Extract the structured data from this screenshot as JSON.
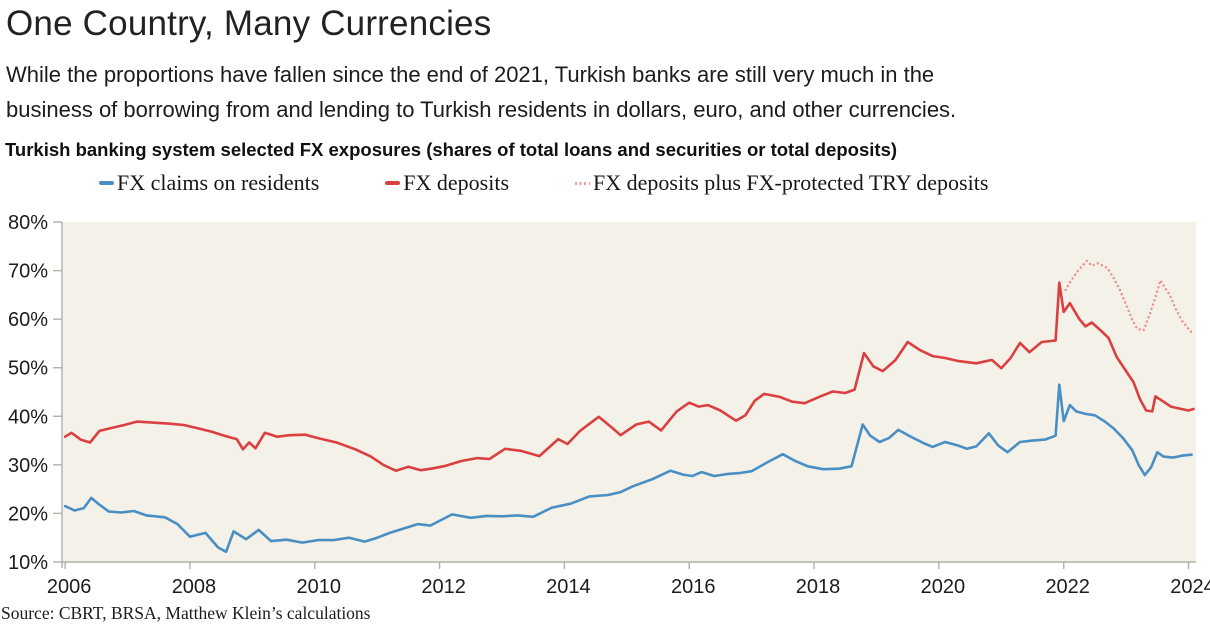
{
  "header": {
    "title": "One Country, Many Currencies",
    "subtitle_line1": "While the proportions have fallen since the end of 2021, Turkish banks are still very much in the",
    "subtitle_line2": "business of borrowing from and lending to Turkish residents in dollars, euro, and other currencies.",
    "chart_heading": "Turkish banking system selected FX exposures (shares of total loans and securities or total deposits)"
  },
  "legend": {
    "items": [
      {
        "label": "FX claims on residents",
        "color": "#4a8fc4",
        "style": "solid"
      },
      {
        "label": "FX deposits",
        "color": "#da4040",
        "style": "solid"
      },
      {
        "label": "FX deposits plus FX-protected TRY deposits",
        "color": "#ef9e99",
        "style": "dotted"
      }
    ]
  },
  "chart_data": {
    "type": "line",
    "title": "Turkish banking system selected FX exposures (shares of total loans and securities or total deposits)",
    "xlabel": "",
    "ylabel": "",
    "xlim": [
      2005.95,
      2024.12
    ],
    "ylim": [
      10,
      80
    ],
    "background": "#f4f1e9",
    "axis_color": "#b3b1ac",
    "grid": false,
    "legend_position": "top",
    "x_ticks": [
      {
        "v": 2006,
        "label": "2006"
      },
      {
        "v": 2008,
        "label": "2008"
      },
      {
        "v": 2010,
        "label": "2010"
      },
      {
        "v": 2012,
        "label": "2012"
      },
      {
        "v": 2014,
        "label": "2014"
      },
      {
        "v": 2016,
        "label": "2016"
      },
      {
        "v": 2018,
        "label": "2018"
      },
      {
        "v": 2020,
        "label": "2020"
      },
      {
        "v": 2022,
        "label": "2022"
      },
      {
        "v": 2024,
        "label": "2024"
      }
    ],
    "y_ticks": [
      {
        "v": 10,
        "label": "10%"
      },
      {
        "v": 20,
        "label": "20%"
      },
      {
        "v": 30,
        "label": "30%"
      },
      {
        "v": 40,
        "label": "40%"
      },
      {
        "v": 50,
        "label": "50%"
      },
      {
        "v": 60,
        "label": "60%"
      },
      {
        "v": 70,
        "label": "70%"
      },
      {
        "v": 80,
        "label": "80%"
      }
    ],
    "series": [
      {
        "name": "FX claims on residents",
        "color": "#4a8fc4",
        "style": "solid",
        "points": [
          [
            2006.0,
            21.5
          ],
          [
            2006.15,
            20.6
          ],
          [
            2006.3,
            21.1
          ],
          [
            2006.42,
            23.2
          ],
          [
            2006.55,
            21.8
          ],
          [
            2006.7,
            20.4
          ],
          [
            2006.9,
            20.2
          ],
          [
            2007.1,
            20.5
          ],
          [
            2007.3,
            19.6
          ],
          [
            2007.6,
            19.2
          ],
          [
            2007.8,
            17.8
          ],
          [
            2008.0,
            15.2
          ],
          [
            2008.25,
            16.0
          ],
          [
            2008.45,
            13.0
          ],
          [
            2008.58,
            12.1
          ],
          [
            2008.7,
            16.3
          ],
          [
            2008.9,
            14.7
          ],
          [
            2009.1,
            16.6
          ],
          [
            2009.3,
            14.3
          ],
          [
            2009.55,
            14.6
          ],
          [
            2009.8,
            14.0
          ],
          [
            2010.05,
            14.5
          ],
          [
            2010.3,
            14.5
          ],
          [
            2010.55,
            15.0
          ],
          [
            2010.8,
            14.2
          ],
          [
            2011.0,
            15.0
          ],
          [
            2011.2,
            16.0
          ],
          [
            2011.45,
            17.0
          ],
          [
            2011.65,
            17.8
          ],
          [
            2011.85,
            17.5
          ],
          [
            2012.2,
            19.8
          ],
          [
            2012.5,
            19.1
          ],
          [
            2012.75,
            19.5
          ],
          [
            2013.0,
            19.4
          ],
          [
            2013.25,
            19.6
          ],
          [
            2013.5,
            19.3
          ],
          [
            2013.8,
            21.2
          ],
          [
            2014.1,
            22.0
          ],
          [
            2014.4,
            23.5
          ],
          [
            2014.7,
            23.8
          ],
          [
            2014.9,
            24.4
          ],
          [
            2015.1,
            25.6
          ],
          [
            2015.4,
            27.0
          ],
          [
            2015.7,
            28.8
          ],
          [
            2015.9,
            28.0
          ],
          [
            2016.05,
            27.7
          ],
          [
            2016.2,
            28.5
          ],
          [
            2016.4,
            27.7
          ],
          [
            2016.6,
            28.1
          ],
          [
            2016.8,
            28.3
          ],
          [
            2017.0,
            28.7
          ],
          [
            2017.25,
            30.5
          ],
          [
            2017.5,
            32.2
          ],
          [
            2017.7,
            30.8
          ],
          [
            2017.9,
            29.7
          ],
          [
            2018.15,
            29.1
          ],
          [
            2018.4,
            29.2
          ],
          [
            2018.6,
            29.7
          ],
          [
            2018.78,
            38.3
          ],
          [
            2018.9,
            36.0
          ],
          [
            2019.05,
            34.7
          ],
          [
            2019.2,
            35.5
          ],
          [
            2019.35,
            37.2
          ],
          [
            2019.55,
            35.8
          ],
          [
            2019.75,
            34.5
          ],
          [
            2019.9,
            33.7
          ],
          [
            2020.1,
            34.7
          ],
          [
            2020.3,
            34.0
          ],
          [
            2020.45,
            33.3
          ],
          [
            2020.6,
            33.8
          ],
          [
            2020.8,
            36.5
          ],
          [
            2020.95,
            34.0
          ],
          [
            2021.1,
            32.6
          ],
          [
            2021.3,
            34.7
          ],
          [
            2021.5,
            35.0
          ],
          [
            2021.7,
            35.2
          ],
          [
            2021.87,
            36.0
          ],
          [
            2021.93,
            46.5
          ],
          [
            2022.0,
            39.0
          ],
          [
            2022.1,
            42.3
          ],
          [
            2022.2,
            41.0
          ],
          [
            2022.35,
            40.5
          ],
          [
            2022.5,
            40.2
          ],
          [
            2022.65,
            39.0
          ],
          [
            2022.8,
            37.5
          ],
          [
            2022.95,
            35.5
          ],
          [
            2023.1,
            33.0
          ],
          [
            2023.2,
            30.0
          ],
          [
            2023.3,
            27.9
          ],
          [
            2023.4,
            29.5
          ],
          [
            2023.5,
            32.6
          ],
          [
            2023.6,
            31.7
          ],
          [
            2023.75,
            31.5
          ],
          [
            2023.9,
            31.9
          ],
          [
            2024.05,
            32.1
          ]
        ]
      },
      {
        "name": "FX deposits",
        "color": "#da4040",
        "style": "solid",
        "points": [
          [
            2006.0,
            35.8
          ],
          [
            2006.1,
            36.6
          ],
          [
            2006.25,
            35.2
          ],
          [
            2006.4,
            34.6
          ],
          [
            2006.55,
            37.0
          ],
          [
            2006.75,
            37.6
          ],
          [
            2006.95,
            38.2
          ],
          [
            2007.15,
            38.9
          ],
          [
            2007.4,
            38.7
          ],
          [
            2007.65,
            38.5
          ],
          [
            2007.9,
            38.2
          ],
          [
            2008.1,
            37.6
          ],
          [
            2008.35,
            36.8
          ],
          [
            2008.55,
            36.0
          ],
          [
            2008.75,
            35.3
          ],
          [
            2008.85,
            33.2
          ],
          [
            2008.95,
            34.6
          ],
          [
            2009.05,
            33.4
          ],
          [
            2009.2,
            36.6
          ],
          [
            2009.4,
            35.8
          ],
          [
            2009.6,
            36.1
          ],
          [
            2009.85,
            36.2
          ],
          [
            2010.05,
            35.5
          ],
          [
            2010.35,
            34.6
          ],
          [
            2010.65,
            33.2
          ],
          [
            2010.9,
            31.7
          ],
          [
            2011.1,
            30.0
          ],
          [
            2011.3,
            28.8
          ],
          [
            2011.5,
            29.6
          ],
          [
            2011.7,
            28.9
          ],
          [
            2011.9,
            29.3
          ],
          [
            2012.1,
            29.8
          ],
          [
            2012.35,
            30.8
          ],
          [
            2012.6,
            31.4
          ],
          [
            2012.8,
            31.2
          ],
          [
            2013.05,
            33.3
          ],
          [
            2013.3,
            32.9
          ],
          [
            2013.6,
            31.8
          ],
          [
            2013.9,
            35.3
          ],
          [
            2014.05,
            34.3
          ],
          [
            2014.25,
            37.0
          ],
          [
            2014.55,
            39.9
          ],
          [
            2014.75,
            37.8
          ],
          [
            2014.9,
            36.1
          ],
          [
            2015.15,
            38.3
          ],
          [
            2015.35,
            38.9
          ],
          [
            2015.55,
            37.1
          ],
          [
            2015.8,
            41.0
          ],
          [
            2016.0,
            42.8
          ],
          [
            2016.15,
            42.0
          ],
          [
            2016.3,
            42.3
          ],
          [
            2016.5,
            41.2
          ],
          [
            2016.75,
            39.1
          ],
          [
            2016.9,
            40.2
          ],
          [
            2017.05,
            43.2
          ],
          [
            2017.2,
            44.6
          ],
          [
            2017.45,
            44.0
          ],
          [
            2017.65,
            43.0
          ],
          [
            2017.85,
            42.7
          ],
          [
            2018.1,
            44.1
          ],
          [
            2018.3,
            45.1
          ],
          [
            2018.5,
            44.8
          ],
          [
            2018.65,
            45.5
          ],
          [
            2018.8,
            53.0
          ],
          [
            2018.95,
            50.3
          ],
          [
            2019.1,
            49.3
          ],
          [
            2019.3,
            51.5
          ],
          [
            2019.5,
            55.3
          ],
          [
            2019.7,
            53.6
          ],
          [
            2019.9,
            52.4
          ],
          [
            2020.1,
            52.0
          ],
          [
            2020.3,
            51.4
          ],
          [
            2020.6,
            50.9
          ],
          [
            2020.85,
            51.6
          ],
          [
            2021.0,
            49.9
          ],
          [
            2021.15,
            52.0
          ],
          [
            2021.3,
            55.1
          ],
          [
            2021.45,
            53.2
          ],
          [
            2021.65,
            55.3
          ],
          [
            2021.87,
            55.6
          ],
          [
            2021.93,
            67.5
          ],
          [
            2022.0,
            61.5
          ],
          [
            2022.1,
            63.3
          ],
          [
            2022.25,
            60.0
          ],
          [
            2022.35,
            58.5
          ],
          [
            2022.45,
            59.3
          ],
          [
            2022.6,
            57.6
          ],
          [
            2022.72,
            56.1
          ],
          [
            2022.85,
            52.2
          ],
          [
            2023.0,
            49.3
          ],
          [
            2023.12,
            47.0
          ],
          [
            2023.22,
            43.6
          ],
          [
            2023.32,
            41.2
          ],
          [
            2023.42,
            41.0
          ],
          [
            2023.47,
            44.1
          ],
          [
            2023.6,
            43.0
          ],
          [
            2023.72,
            42.0
          ],
          [
            2023.85,
            41.6
          ],
          [
            2024.0,
            41.2
          ],
          [
            2024.08,
            41.5
          ]
        ]
      },
      {
        "name": "FX deposits plus FX-protected TRY deposits",
        "color": "#ec9292",
        "style": "dotted",
        "points": [
          [
            2022.03,
            66.0
          ],
          [
            2022.12,
            68.0
          ],
          [
            2022.25,
            70.3
          ],
          [
            2022.37,
            72.0
          ],
          [
            2022.45,
            71.0
          ],
          [
            2022.55,
            71.5
          ],
          [
            2022.7,
            70.5
          ],
          [
            2022.8,
            68.5
          ],
          [
            2022.9,
            66.0
          ],
          [
            2023.0,
            63.0
          ],
          [
            2023.1,
            59.8
          ],
          [
            2023.18,
            58.0
          ],
          [
            2023.28,
            57.7
          ],
          [
            2023.38,
            61.0
          ],
          [
            2023.47,
            64.5
          ],
          [
            2023.55,
            68.0
          ],
          [
            2023.62,
            66.5
          ],
          [
            2023.7,
            65.0
          ],
          [
            2023.8,
            62.0
          ],
          [
            2023.9,
            59.6
          ],
          [
            2024.0,
            58.0
          ],
          [
            2024.08,
            56.8
          ]
        ]
      }
    ]
  },
  "source": "Source: CBRT, BRSA, Matthew Klein’s calculations"
}
